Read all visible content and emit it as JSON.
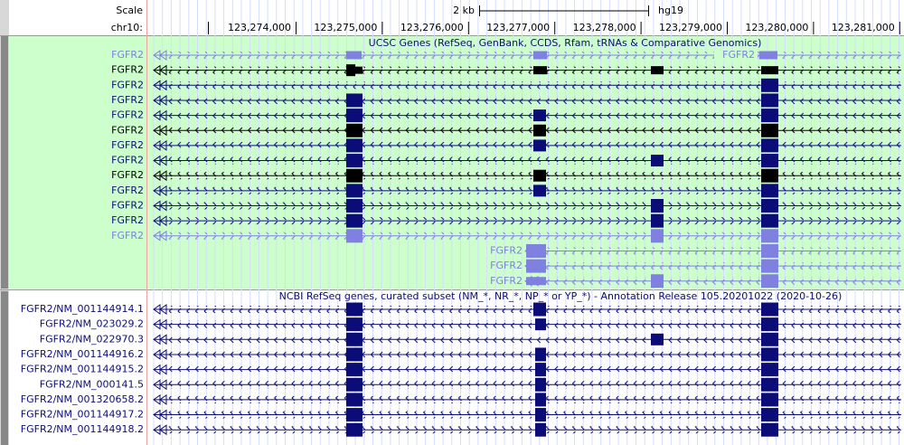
{
  "header": {
    "scale_label": "Scale",
    "chrom_label": "chr10:",
    "scale_bar": "2 kb",
    "assembly": "hg19",
    "ruler": [
      "123,274,000",
      "123,275,000",
      "123,276,000",
      "123,277,000",
      "123,278,000",
      "123,279,000",
      "123,280,000",
      "123,281,000"
    ]
  },
  "tracks": [
    {
      "title": "UCSC Genes (RefSeq, GenBank, CCDS, Rfam, tRNAs & Comparative Genomics)",
      "rows": [
        {
          "label": "FGFR2",
          "label2": "FGFR2"
        },
        {
          "label": "FGFR2"
        },
        {
          "label": "FGFR2"
        },
        {
          "label": "FGFR2"
        },
        {
          "label": "FGFR2"
        },
        {
          "label": "FGFR2"
        },
        {
          "label": "FGFR2"
        },
        {
          "label": "FGFR2"
        },
        {
          "label": "FGFR2"
        },
        {
          "label": "FGFR2"
        },
        {
          "label": "FGFR2"
        },
        {
          "label": "FGFR2"
        },
        {
          "label": "FGFR2"
        },
        {
          "label": "FGFR2"
        },
        {
          "label": "FGFR2"
        },
        {
          "label": "FGFR2"
        }
      ]
    },
    {
      "title": "NCBI RefSeq genes, curated subset (NM_*, NR_*, NP_* or YP_*) - Annotation Release 105.20201022 (2020-10-26)",
      "rows": [
        {
          "label": "FGFR2/NM_001144914.1"
        },
        {
          "label": "FGFR2/NM_023029.2"
        },
        {
          "label": "FGFR2/NM_022970.3"
        },
        {
          "label": "FGFR2/NM_001144916.2"
        },
        {
          "label": "FGFR2/NM_001144915.2"
        },
        {
          "label": "FGFR2/NM_000141.5"
        },
        {
          "label": "FGFR2/NM_001320658.2"
        },
        {
          "label": "FGFR2/NM_001144917.2"
        },
        {
          "label": "FGFR2/NM_001144918.2"
        }
      ]
    }
  ]
}
